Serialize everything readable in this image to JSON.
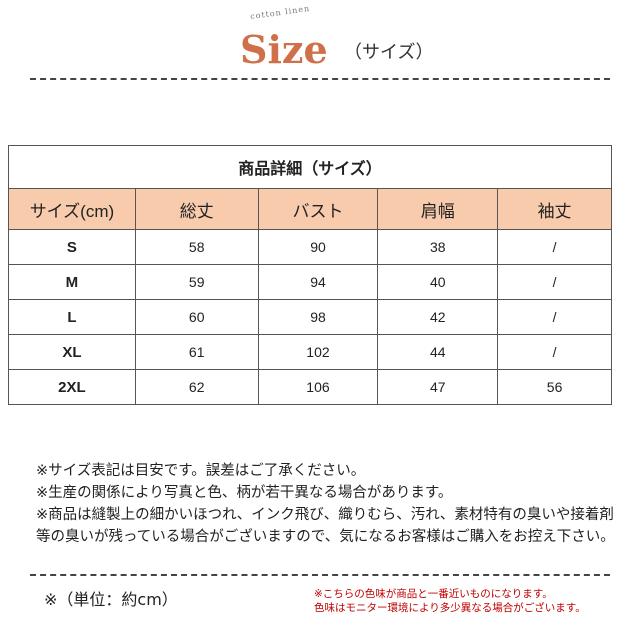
{
  "header": {
    "subtitle": "cotton linen",
    "title": "Size",
    "title_jp": "（サイズ）"
  },
  "table": {
    "title": "商品詳細（サイズ）",
    "columns": [
      "サイズ(cm)",
      "総丈",
      "バスト",
      "肩幅",
      "袖丈"
    ],
    "rows": [
      [
        "S",
        "58",
        "90",
        "38",
        "/"
      ],
      [
        "M",
        "59",
        "94",
        "40",
        "/"
      ],
      [
        "L",
        "60",
        "98",
        "42",
        "/"
      ],
      [
        "XL",
        "61",
        "102",
        "44",
        "/"
      ],
      [
        "2XL",
        "62",
        "106",
        "47",
        "56"
      ]
    ]
  },
  "notes": [
    "※サイズ表記は目安です。誤差はご了承ください。",
    "※生産の関係により写真と色、柄が若干異なる場合があります。",
    "※商品は縫製上の細かいほつれ、インク飛び、織りむら、汚れ、素材特有の臭いや接着剤等の臭いが残っている場合がございますので、気になるお客様はご購入をお控え下さい。"
  ],
  "unit": "※（単位：約cm）",
  "color_notes": [
    "※こちらの色味が商品と一番近いものになります。",
    "色味はモニター環境により多少異なる場合がございます。"
  ],
  "colors": {
    "accent": "#d0704a",
    "header_bg": "#f8cbad",
    "red_note": "#c00000"
  }
}
